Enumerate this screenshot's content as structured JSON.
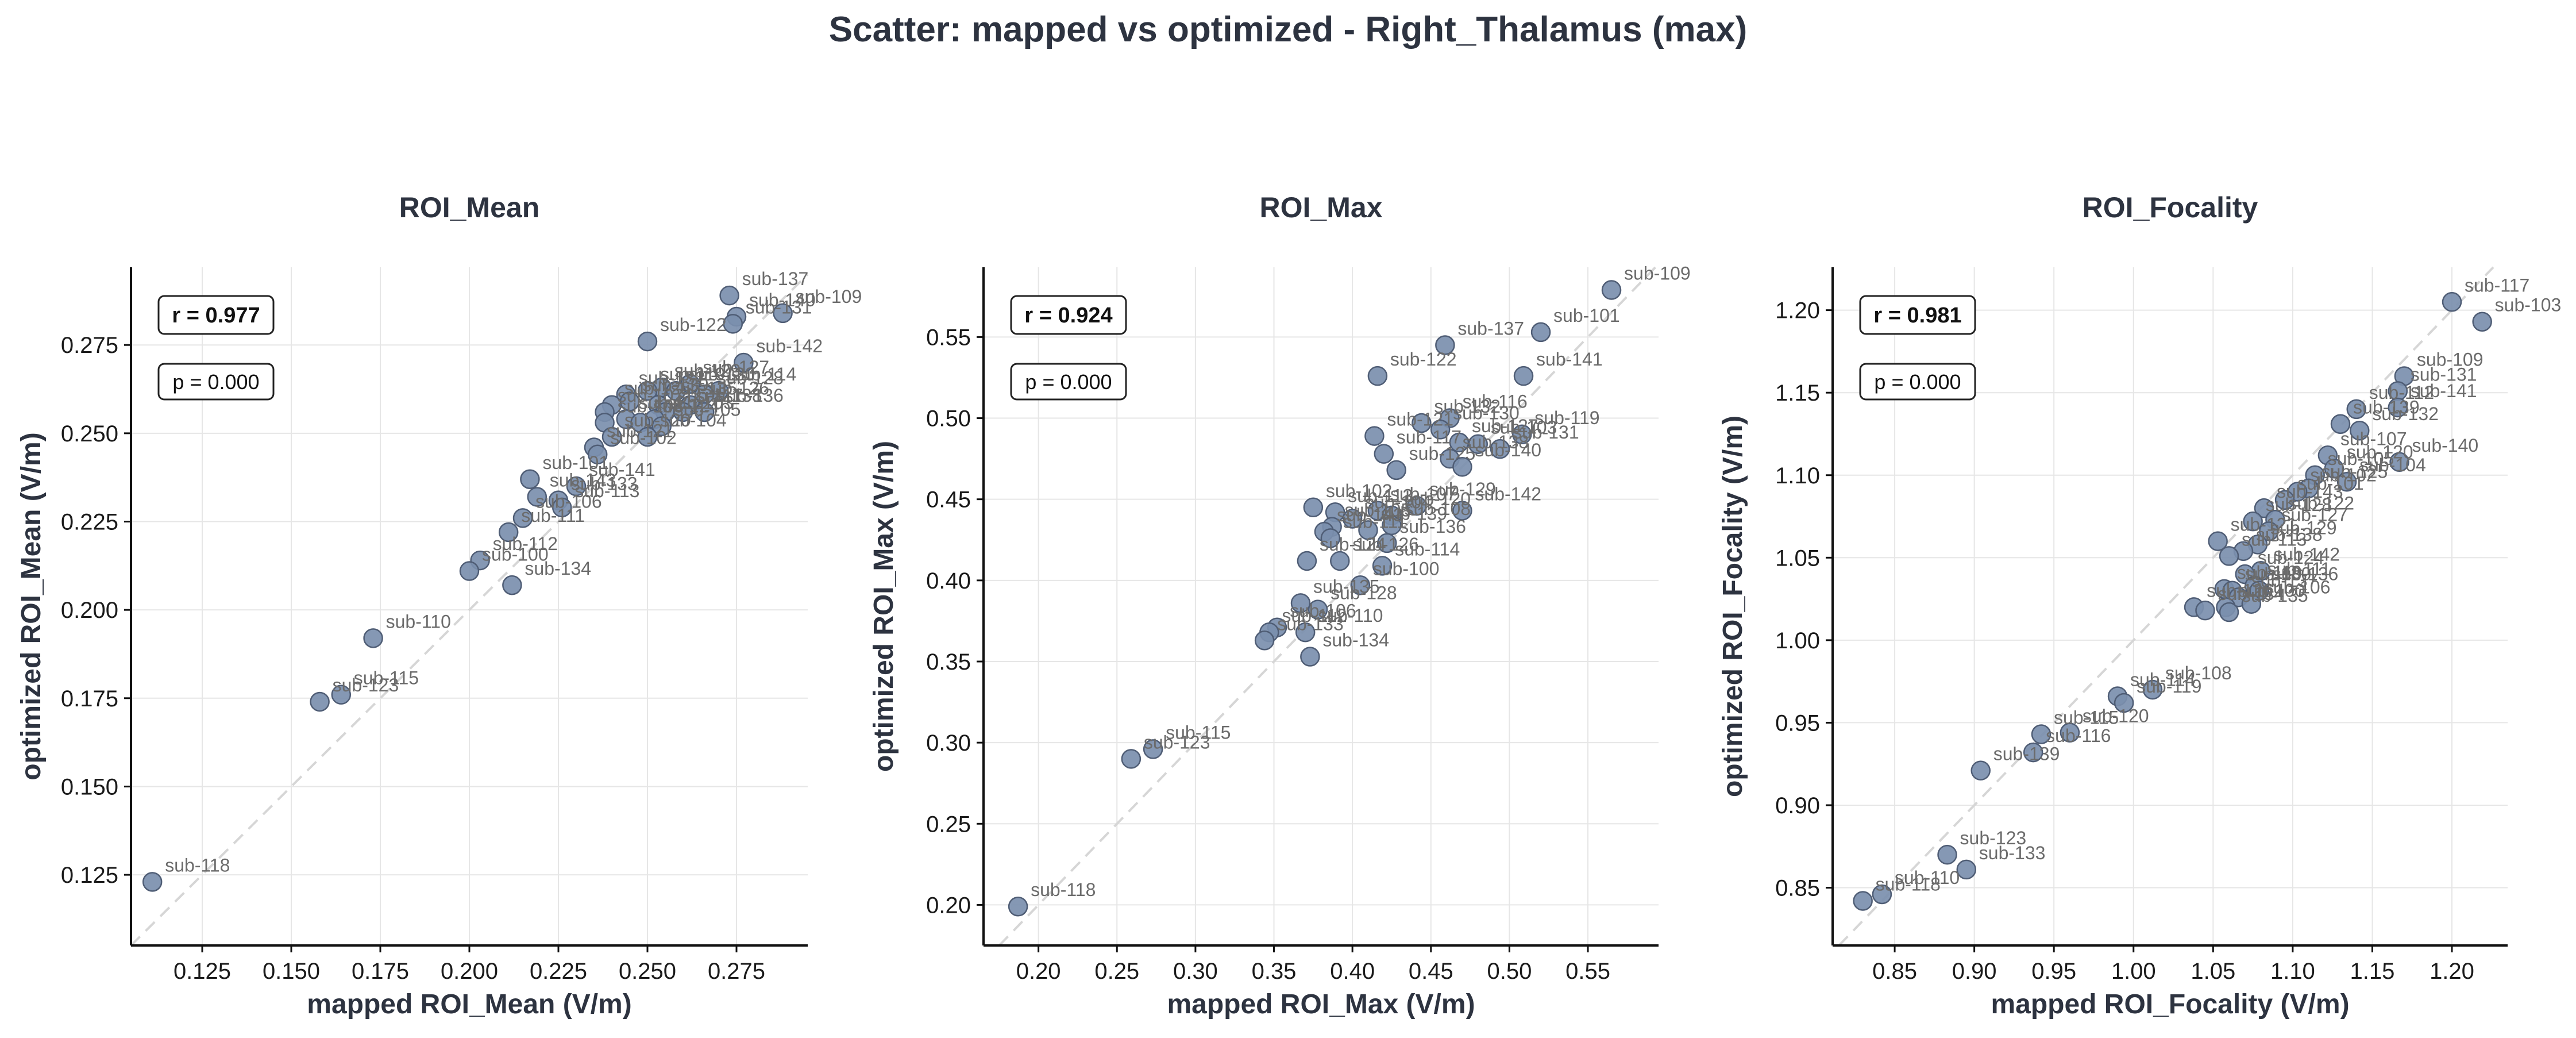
{
  "suptitle": "Scatter: mapped vs optimized - Right_Thalamus (max)",
  "style": {
    "point_color": "#7b8fae",
    "point_edge": "#4f5d75",
    "grid_color": "#e6e6e6",
    "diag_color": "#d6d6d6",
    "text_color": "#2d3340"
  },
  "chart_data": [
    {
      "type": "scatter",
      "title": "ROI_Mean",
      "xlabel": "mapped ROI_Mean (V/m)",
      "ylabel": "optimized ROI_Mean (V/m)",
      "xlim": [
        0.105,
        0.295
      ],
      "ylim": [
        0.105,
        0.297
      ],
      "xticks": [
        "0.125",
        "0.150",
        "0.175",
        "0.200",
        "0.225",
        "0.250",
        "0.275"
      ],
      "yticks": [
        "0.125",
        "0.150",
        "0.175",
        "0.200",
        "0.225",
        "0.250",
        "0.275"
      ],
      "r_text": "r = 0.977",
      "p_text": "p = 0.000",
      "grid": true,
      "points": [
        {
          "label": "sub-137",
          "x": 0.273,
          "y": 0.289
        },
        {
          "label": "sub-109",
          "x": 0.288,
          "y": 0.284
        },
        {
          "label": "sub-140",
          "x": 0.275,
          "y": 0.283
        },
        {
          "label": "sub-131",
          "x": 0.274,
          "y": 0.281
        },
        {
          "label": "sub-122",
          "x": 0.25,
          "y": 0.276
        },
        {
          "label": "sub-142",
          "x": 0.277,
          "y": 0.27
        },
        {
          "label": "sub-114",
          "x": 0.27,
          "y": 0.262
        },
        {
          "label": "sub-127",
          "x": 0.262,
          "y": 0.264
        },
        {
          "label": "sub-128",
          "x": 0.266,
          "y": 0.261
        },
        {
          "label": "sub-129",
          "x": 0.254,
          "y": 0.263
        },
        {
          "label": "sub-130",
          "x": 0.258,
          "y": 0.262
        },
        {
          "label": "sub-119",
          "x": 0.25,
          "y": 0.262
        },
        {
          "label": "sub-132",
          "x": 0.244,
          "y": 0.261
        },
        {
          "label": "sub-126",
          "x": 0.262,
          "y": 0.258
        },
        {
          "label": "sub-136",
          "x": 0.266,
          "y": 0.256
        },
        {
          "label": "sub-139",
          "x": 0.245,
          "y": 0.259
        },
        {
          "label": "sub-135",
          "x": 0.253,
          "y": 0.258
        },
        {
          "label": "sub-125",
          "x": 0.24,
          "y": 0.258
        },
        {
          "label": "sub-117",
          "x": 0.255,
          "y": 0.256
        },
        {
          "label": "sub-138",
          "x": 0.26,
          "y": 0.256
        },
        {
          "label": "sub-107",
          "x": 0.238,
          "y": 0.256
        },
        {
          "label": "sub-103",
          "x": 0.252,
          "y": 0.254
        },
        {
          "label": "sub-116",
          "x": 0.244,
          "y": 0.254
        },
        {
          "label": "sub-124",
          "x": 0.248,
          "y": 0.253
        },
        {
          "label": "sub-105",
          "x": 0.254,
          "y": 0.252
        },
        {
          "label": "sub-108",
          "x": 0.238,
          "y": 0.253
        },
        {
          "label": "sub-120",
          "x": 0.24,
          "y": 0.249
        },
        {
          "label": "sub-104",
          "x": 0.25,
          "y": 0.249
        },
        {
          "label": "sub-121",
          "x": 0.235,
          "y": 0.246
        },
        {
          "label": "sub-102",
          "x": 0.236,
          "y": 0.244
        },
        {
          "label": "sub-101",
          "x": 0.217,
          "y": 0.237
        },
        {
          "label": "sub-141",
          "x": 0.23,
          "y": 0.235
        },
        {
          "label": "sub-143",
          "x": 0.219,
          "y": 0.232
        },
        {
          "label": "sub-133",
          "x": 0.225,
          "y": 0.231
        },
        {
          "label": "sub-113",
          "x": 0.226,
          "y": 0.229
        },
        {
          "label": "sub-106",
          "x": 0.215,
          "y": 0.226
        },
        {
          "label": "sub-111",
          "x": 0.211,
          "y": 0.222
        },
        {
          "label": "sub-112",
          "x": 0.203,
          "y": 0.214
        },
        {
          "label": "sub-100",
          "x": 0.2,
          "y": 0.211
        },
        {
          "label": "sub-134",
          "x": 0.212,
          "y": 0.207
        },
        {
          "label": "sub-110",
          "x": 0.173,
          "y": 0.192
        },
        {
          "label": "sub-115",
          "x": 0.164,
          "y": 0.176
        },
        {
          "label": "sub-123",
          "x": 0.158,
          "y": 0.174
        },
        {
          "label": "sub-118",
          "x": 0.111,
          "y": 0.123
        }
      ]
    },
    {
      "type": "scatter",
      "title": "ROI_Max",
      "xlabel": "mapped ROI_Max (V/m)",
      "ylabel": "optimized ROI_Max (V/m)",
      "xlim": [
        0.165,
        0.595
      ],
      "ylim": [
        0.175,
        0.593
      ],
      "xticks": [
        "0.20",
        "0.25",
        "0.30",
        "0.35",
        "0.40",
        "0.45",
        "0.50",
        "0.55"
      ],
      "yticks": [
        "0.20",
        "0.25",
        "0.30",
        "0.35",
        "0.40",
        "0.45",
        "0.50",
        "0.55"
      ],
      "r_text": "r = 0.924",
      "p_text": "p = 0.000",
      "grid": true,
      "points": [
        {
          "label": "sub-109",
          "x": 0.565,
          "y": 0.579
        },
        {
          "label": "sub-101",
          "x": 0.52,
          "y": 0.553
        },
        {
          "label": "sub-137",
          "x": 0.459,
          "y": 0.545
        },
        {
          "label": "sub-141",
          "x": 0.509,
          "y": 0.526
        },
        {
          "label": "sub-122",
          "x": 0.416,
          "y": 0.526
        },
        {
          "label": "sub-116",
          "x": 0.462,
          "y": 0.5
        },
        {
          "label": "sub-132",
          "x": 0.444,
          "y": 0.497
        },
        {
          "label": "sub-130",
          "x": 0.456,
          "y": 0.493
        },
        {
          "label": "sub-119",
          "x": 0.508,
          "y": 0.49
        },
        {
          "label": "sub-121",
          "x": 0.414,
          "y": 0.489
        },
        {
          "label": "sub-127",
          "x": 0.468,
          "y": 0.485
        },
        {
          "label": "sub-103",
          "x": 0.48,
          "y": 0.484
        },
        {
          "label": "sub-131",
          "x": 0.494,
          "y": 0.481
        },
        {
          "label": "sub-117",
          "x": 0.42,
          "y": 0.478
        },
        {
          "label": "sub-138",
          "x": 0.462,
          "y": 0.475
        },
        {
          "label": "sub-125",
          "x": 0.428,
          "y": 0.468
        },
        {
          "label": "sub-140",
          "x": 0.47,
          "y": 0.47
        },
        {
          "label": "sub-142",
          "x": 0.47,
          "y": 0.443
        },
        {
          "label": "sub-102",
          "x": 0.375,
          "y": 0.445
        },
        {
          "label": "sub-129",
          "x": 0.441,
          "y": 0.446
        },
        {
          "label": "sub-107",
          "x": 0.416,
          "y": 0.443
        },
        {
          "label": "sub-120",
          "x": 0.425,
          "y": 0.44
        },
        {
          "label": "sub-113",
          "x": 0.389,
          "y": 0.442
        },
        {
          "label": "sub-104",
          "x": 0.4,
          "y": 0.438
        },
        {
          "label": "sub-108",
          "x": 0.425,
          "y": 0.434
        },
        {
          "label": "sub-105",
          "x": 0.387,
          "y": 0.433
        },
        {
          "label": "sub-139",
          "x": 0.41,
          "y": 0.431
        },
        {
          "label": "sub-143",
          "x": 0.382,
          "y": 0.43
        },
        {
          "label": "sub-111",
          "x": 0.386,
          "y": 0.426
        },
        {
          "label": "sub-136",
          "x": 0.422,
          "y": 0.423
        },
        {
          "label": "sub-126",
          "x": 0.392,
          "y": 0.412
        },
        {
          "label": "sub-124",
          "x": 0.371,
          "y": 0.412
        },
        {
          "label": "sub-114",
          "x": 0.419,
          "y": 0.409
        },
        {
          "label": "sub-100",
          "x": 0.405,
          "y": 0.397
        },
        {
          "label": "sub-135",
          "x": 0.367,
          "y": 0.386
        },
        {
          "label": "sub-128",
          "x": 0.378,
          "y": 0.382
        },
        {
          "label": "sub-106",
          "x": 0.352,
          "y": 0.371
        },
        {
          "label": "sub-112",
          "x": 0.347,
          "y": 0.368
        },
        {
          "label": "sub-110",
          "x": 0.37,
          "y": 0.368
        },
        {
          "label": "sub-133",
          "x": 0.344,
          "y": 0.363
        },
        {
          "label": "sub-134",
          "x": 0.373,
          "y": 0.353
        },
        {
          "label": "sub-115",
          "x": 0.273,
          "y": 0.296
        },
        {
          "label": "sub-123",
          "x": 0.259,
          "y": 0.29
        },
        {
          "label": "sub-118",
          "x": 0.187,
          "y": 0.199
        }
      ]
    },
    {
      "type": "scatter",
      "title": "ROI_Focality",
      "xlabel": "mapped ROI_Focality (V/m)",
      "ylabel": "optimized ROI_Focality (V/m)",
      "xlim": [
        0.811,
        1.235
      ],
      "ylim": [
        0.815,
        1.226
      ],
      "xticks": [
        "0.85",
        "0.90",
        "0.95",
        "1.00",
        "1.05",
        "1.10",
        "1.15",
        "1.20"
      ],
      "yticks": [
        "0.85",
        "0.90",
        "0.95",
        "1.00",
        "1.05",
        "1.10",
        "1.15",
        "1.20"
      ],
      "r_text": "r = 0.981",
      "p_text": "p = 0.000",
      "grid": true,
      "points": [
        {
          "label": "sub-117",
          "x": 1.2,
          "y": 1.205
        },
        {
          "label": "sub-103",
          "x": 1.219,
          "y": 1.193
        },
        {
          "label": "sub-109",
          "x": 1.17,
          "y": 1.16
        },
        {
          "label": "sub-131",
          "x": 1.166,
          "y": 1.151
        },
        {
          "label": "sub-141",
          "x": 1.166,
          "y": 1.141
        },
        {
          "label": "sub-112",
          "x": 1.14,
          "y": 1.14
        },
        {
          "label": "sub-139",
          "x": 1.13,
          "y": 1.131
        },
        {
          "label": "sub-132",
          "x": 1.142,
          "y": 1.127
        },
        {
          "label": "sub-140",
          "x": 1.167,
          "y": 1.108
        },
        {
          "label": "sub-107",
          "x": 1.122,
          "y": 1.112
        },
        {
          "label": "sub-120",
          "x": 1.126,
          "y": 1.104
        },
        {
          "label": "sub-105",
          "x": 1.114,
          "y": 1.1
        },
        {
          "label": "sub-104",
          "x": 1.134,
          "y": 1.096
        },
        {
          "label": "sub-125",
          "x": 1.11,
          "y": 1.092
        },
        {
          "label": "sub-102",
          "x": 1.103,
          "y": 1.09
        },
        {
          "label": "sub-101",
          "x": 1.095,
          "y": 1.085
        },
        {
          "label": "sub-143",
          "x": 1.082,
          "y": 1.08
        },
        {
          "label": "sub-122",
          "x": 1.089,
          "y": 1.073
        },
        {
          "label": "sub-128",
          "x": 1.075,
          "y": 1.072
        },
        {
          "label": "sub-127",
          "x": 1.085,
          "y": 1.066
        },
        {
          "label": "sub-121",
          "x": 1.053,
          "y": 1.06
        },
        {
          "label": "sub-129",
          "x": 1.078,
          "y": 1.058
        },
        {
          "label": "sub-138",
          "x": 1.069,
          "y": 1.054
        },
        {
          "label": "sub-113",
          "x": 1.06,
          "y": 1.051
        },
        {
          "label": "sub-142",
          "x": 1.08,
          "y": 1.042
        },
        {
          "label": "sub-124",
          "x": 1.07,
          "y": 1.04
        },
        {
          "label": "sub-111",
          "x": 1.076,
          "y": 1.033
        },
        {
          "label": "sub-119",
          "x": 1.057,
          "y": 1.031
        },
        {
          "label": "sub-130",
          "x": 1.062,
          "y": 1.03
        },
        {
          "label": "sub-136",
          "x": 1.079,
          "y": 1.03
        },
        {
          "label": "sub-137",
          "x": 1.066,
          "y": 1.026
        },
        {
          "label": "sub-106",
          "x": 1.074,
          "y": 1.022
        },
        {
          "label": "sub-100",
          "x": 1.058,
          "y": 1.02
        },
        {
          "label": "sub-126",
          "x": 1.038,
          "y": 1.02
        },
        {
          "label": "sub-134",
          "x": 1.045,
          "y": 1.018
        },
        {
          "label": "sub-135",
          "x": 1.06,
          "y": 1.017
        },
        {
          "label": "sub-108",
          "x": 1.012,
          "y": 0.97
        },
        {
          "label": "sub-114",
          "x": 0.99,
          "y": 0.966
        },
        {
          "label": "sub-119b",
          "x": 0.994,
          "y": 0.962
        },
        {
          "label": "sub-120b",
          "x": 0.96,
          "y": 0.944
        },
        {
          "label": "sub-115",
          "x": 0.942,
          "y": 0.943
        },
        {
          "label": "sub-116",
          "x": 0.937,
          "y": 0.932
        },
        {
          "label": "sub-139b",
          "x": 0.904,
          "y": 0.921
        },
        {
          "label": "sub-123",
          "x": 0.883,
          "y": 0.87
        },
        {
          "label": "sub-133",
          "x": 0.895,
          "y": 0.861
        },
        {
          "label": "sub-110",
          "x": 0.842,
          "y": 0.846
        },
        {
          "label": "sub-118",
          "x": 0.83,
          "y": 0.842
        }
      ]
    }
  ]
}
